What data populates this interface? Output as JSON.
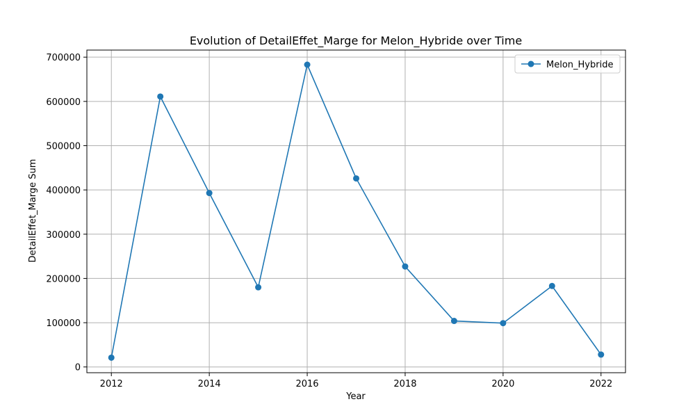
{
  "chart_data": {
    "type": "line",
    "title": "Evolution of DetailEffet_Marge for Melon_Hybride over Time",
    "xlabel": "Year",
    "ylabel": "DetailEffet_Marge Sum",
    "x": [
      2012,
      2013,
      2014,
      2015,
      2016,
      2017,
      2018,
      2019,
      2020,
      2021,
      2022
    ],
    "series": [
      {
        "name": "Melon_Hybride",
        "values": [
          21000,
          611000,
          393000,
          180000,
          683000,
          426000,
          227000,
          104000,
          99000,
          183000,
          28000
        ],
        "color": "#1f77b4",
        "marker": "circle"
      }
    ],
    "xlim": [
      2011.5,
      2022.5
    ],
    "ylim": [
      -13000,
      716000
    ],
    "xticks": [
      2012,
      2014,
      2016,
      2018,
      2020,
      2022
    ],
    "yticks": [
      0,
      100000,
      200000,
      300000,
      400000,
      500000,
      600000,
      700000
    ],
    "grid": true,
    "legend": "top-right",
    "colors": {
      "grid": "#b0b0b0",
      "axis": "#000000"
    }
  }
}
